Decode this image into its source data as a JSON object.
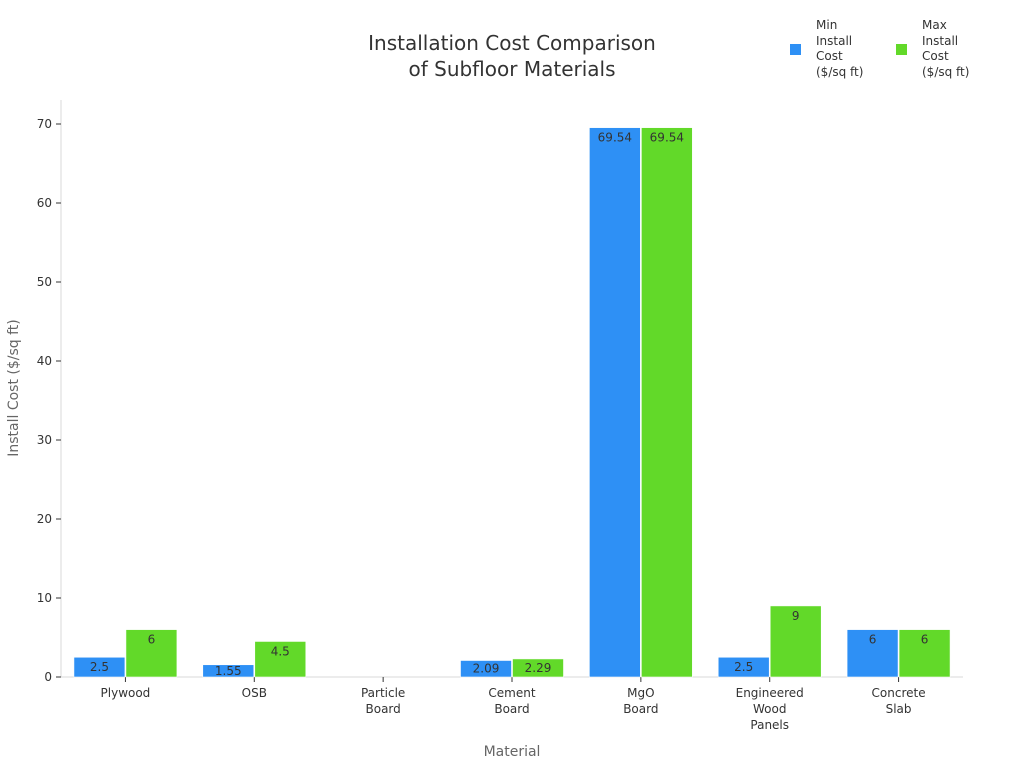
{
  "chart_data": {
    "type": "bar",
    "title": [
      "Installation Cost Comparison",
      "of Subfloor Materials"
    ],
    "xlabel": "Material",
    "ylabel": "Install Cost ($/sq ft)",
    "categories": [
      [
        "Plywood"
      ],
      [
        "OSB"
      ],
      [
        "Particle",
        "Board"
      ],
      [
        "Cement",
        "Board"
      ],
      [
        "MgO",
        "Board"
      ],
      [
        "Engineered",
        "Wood",
        "Panels"
      ],
      [
        "Concrete",
        "Slab"
      ]
    ],
    "series": [
      {
        "name": "Min Install Cost ($/sq ft)",
        "legend_lines": [
          "Min",
          "Install",
          "Cost",
          "($/sq ft)"
        ],
        "color": "#2e90f5",
        "values": [
          2.5,
          1.55,
          null,
          2.09,
          69.54,
          2.5,
          6
        ],
        "labels": [
          "2.5",
          "1.55",
          "",
          "2.09",
          "69.54",
          "2.5",
          "6"
        ]
      },
      {
        "name": "Max Install Cost ($/sq ft)",
        "legend_lines": [
          "Max",
          "Install",
          "Cost",
          "($/sq ft)"
        ],
        "color": "#62d929",
        "values": [
          6,
          4.5,
          null,
          2.29,
          69.54,
          9,
          6
        ],
        "labels": [
          "6",
          "4.5",
          "",
          "2.29",
          "69.54",
          "9",
          "6"
        ]
      }
    ],
    "ylim": [
      0,
      73
    ],
    "yticks": [
      0,
      10,
      20,
      30,
      40,
      50,
      60,
      70
    ],
    "grid": false,
    "legend_position": "top-right"
  }
}
